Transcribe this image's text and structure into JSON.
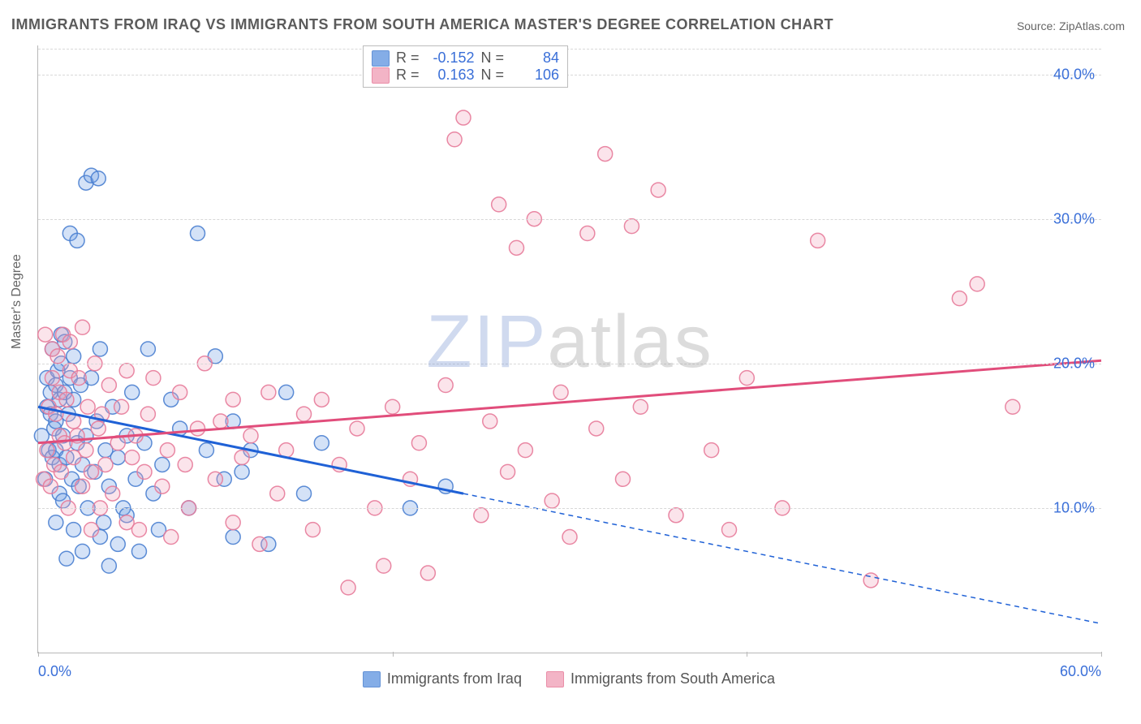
{
  "title": "IMMIGRANTS FROM IRAQ VS IMMIGRANTS FROM SOUTH AMERICA MASTER'S DEGREE CORRELATION CHART",
  "source_label": "Source: ZipAtlas.com",
  "ylabel": "Master's Degree",
  "watermark": {
    "left": "ZIP",
    "right": "atlas"
  },
  "chart": {
    "type": "scatter",
    "xlim": [
      0,
      60
    ],
    "ylim": [
      0,
      42
    ],
    "xtick_values": [
      0,
      20,
      40,
      60
    ],
    "xtick_labels": [
      "0.0%",
      "",
      "",
      "60.0%"
    ],
    "ytick_values": [
      10,
      20,
      30,
      40
    ],
    "ytick_labels": [
      "10.0%",
      "20.0%",
      "30.0%",
      "40.0%"
    ],
    "gridline_color": "#d8d8d8",
    "axis_color": "#b8b8b8",
    "tick_fontsize": 18,
    "tick_color": "#3a6fd8",
    "background_color": "#ffffff",
    "marker_radius": 9,
    "marker_stroke_width": 1.5,
    "marker_fill_opacity": 0.3,
    "trendline_width": 3
  },
  "series": [
    {
      "name": "Immigrants from Iraq",
      "color": "#6f9fe3",
      "stroke": "#4a7fd0",
      "trend_color": "#1f61d6",
      "r": -0.152,
      "n": 84,
      "trend": {
        "x1": 0,
        "y1": 17.0,
        "x2_solid": 24,
        "y2_solid": 11.0,
        "x2": 60,
        "y2": 2.0
      },
      "points": [
        [
          0.2,
          15
        ],
        [
          0.4,
          12
        ],
        [
          0.5,
          17
        ],
        [
          0.5,
          19
        ],
        [
          0.6,
          14
        ],
        [
          0.7,
          16.5
        ],
        [
          0.7,
          18
        ],
        [
          0.8,
          13.5
        ],
        [
          0.8,
          21
        ],
        [
          0.9,
          15.5
        ],
        [
          1.0,
          9
        ],
        [
          1.0,
          14
        ],
        [
          1.0,
          16
        ],
        [
          1.0,
          18.5
        ],
        [
          1.1,
          19.5
        ],
        [
          1.2,
          11
        ],
        [
          1.2,
          13
        ],
        [
          1.2,
          17.5
        ],
        [
          1.3,
          20
        ],
        [
          1.3,
          22
        ],
        [
          1.4,
          10.5
        ],
        [
          1.4,
          15
        ],
        [
          1.5,
          18
        ],
        [
          1.5,
          21.5
        ],
        [
          1.6,
          6.5
        ],
        [
          1.6,
          13.5
        ],
        [
          1.7,
          16.5
        ],
        [
          1.8,
          19
        ],
        [
          1.8,
          29
        ],
        [
          1.9,
          12
        ],
        [
          2.0,
          8.5
        ],
        [
          2.0,
          17.5
        ],
        [
          2.0,
          20.5
        ],
        [
          2.2,
          14.5
        ],
        [
          2.2,
          28.5
        ],
        [
          2.3,
          11.5
        ],
        [
          2.4,
          18.5
        ],
        [
          2.5,
          7
        ],
        [
          2.5,
          13
        ],
        [
          2.7,
          15
        ],
        [
          2.7,
          32.5
        ],
        [
          2.8,
          10
        ],
        [
          3.0,
          19
        ],
        [
          3.0,
          33
        ],
        [
          3.2,
          12.5
        ],
        [
          3.3,
          16
        ],
        [
          3.4,
          32.8
        ],
        [
          3.5,
          21
        ],
        [
          3.5,
          8
        ],
        [
          3.7,
          9
        ],
        [
          3.8,
          14
        ],
        [
          4.0,
          6
        ],
        [
          4.0,
          11.5
        ],
        [
          4.2,
          17
        ],
        [
          4.5,
          13.5
        ],
        [
          4.5,
          7.5
        ],
        [
          4.8,
          10
        ],
        [
          5.0,
          15
        ],
        [
          5.0,
          9.5
        ],
        [
          5.3,
          18
        ],
        [
          5.5,
          12
        ],
        [
          5.7,
          7
        ],
        [
          6.0,
          14.5
        ],
        [
          6.2,
          21
        ],
        [
          6.5,
          11
        ],
        [
          6.8,
          8.5
        ],
        [
          7.0,
          13
        ],
        [
          7.5,
          17.5
        ],
        [
          8.0,
          15.5
        ],
        [
          8.5,
          10
        ],
        [
          9.0,
          29
        ],
        [
          9.5,
          14
        ],
        [
          10.0,
          20.5
        ],
        [
          10.5,
          12
        ],
        [
          11.0,
          8
        ],
        [
          11.0,
          16
        ],
        [
          11.5,
          12.5
        ],
        [
          12.0,
          14
        ],
        [
          13.0,
          7.5
        ],
        [
          14.0,
          18
        ],
        [
          15.0,
          11
        ],
        [
          16.0,
          14.5
        ],
        [
          21.0,
          10
        ],
        [
          23.0,
          11.5
        ]
      ]
    },
    {
      "name": "Immigrants from South America",
      "color": "#f2a7bd",
      "stroke": "#e77b9a",
      "trend_color": "#e14d7b",
      "r": 0.163,
      "n": 106,
      "trend": {
        "x1": 0,
        "y1": 14.5,
        "x2_solid": 60,
        "y2_solid": 20.2,
        "x2": 60,
        "y2": 20.2
      },
      "points": [
        [
          0.3,
          12
        ],
        [
          0.4,
          22
        ],
        [
          0.5,
          14
        ],
        [
          0.6,
          17
        ],
        [
          0.7,
          11.5
        ],
        [
          0.8,
          19
        ],
        [
          0.8,
          21
        ],
        [
          0.9,
          13
        ],
        [
          1.0,
          16.5
        ],
        [
          1.1,
          20.5
        ],
        [
          1.2,
          15
        ],
        [
          1.2,
          18
        ],
        [
          1.3,
          12.5
        ],
        [
          1.4,
          22
        ],
        [
          1.5,
          14.5
        ],
        [
          1.6,
          17.5
        ],
        [
          1.7,
          10
        ],
        [
          1.8,
          19.5
        ],
        [
          1.8,
          21.5
        ],
        [
          2.0,
          13.5
        ],
        [
          2.0,
          16
        ],
        [
          2.2,
          15
        ],
        [
          2.3,
          19
        ],
        [
          2.5,
          11.5
        ],
        [
          2.5,
          22.5
        ],
        [
          2.7,
          14
        ],
        [
          2.8,
          17
        ],
        [
          3.0,
          8.5
        ],
        [
          3.0,
          12.5
        ],
        [
          3.2,
          20
        ],
        [
          3.4,
          15.5
        ],
        [
          3.5,
          10
        ],
        [
          3.6,
          16.5
        ],
        [
          3.8,
          13
        ],
        [
          4.0,
          18.5
        ],
        [
          4.2,
          11
        ],
        [
          4.5,
          14.5
        ],
        [
          4.7,
          17
        ],
        [
          5.0,
          9
        ],
        [
          5.0,
          19.5
        ],
        [
          5.3,
          13.5
        ],
        [
          5.5,
          15
        ],
        [
          5.7,
          8.5
        ],
        [
          6.0,
          12.5
        ],
        [
          6.2,
          16.5
        ],
        [
          6.5,
          19
        ],
        [
          7.0,
          11.5
        ],
        [
          7.3,
          14
        ],
        [
          7.5,
          8
        ],
        [
          8.0,
          18
        ],
        [
          8.3,
          13
        ],
        [
          8.5,
          10
        ],
        [
          9.0,
          15.5
        ],
        [
          9.4,
          20
        ],
        [
          10.0,
          12
        ],
        [
          10.3,
          16
        ],
        [
          11.0,
          9
        ],
        [
          11.0,
          17.5
        ],
        [
          11.5,
          13.5
        ],
        [
          12.0,
          15
        ],
        [
          12.5,
          7.5
        ],
        [
          13.0,
          18
        ],
        [
          13.5,
          11
        ],
        [
          14.0,
          14
        ],
        [
          15.0,
          16.5
        ],
        [
          15.5,
          8.5
        ],
        [
          16.0,
          17.5
        ],
        [
          17.0,
          13
        ],
        [
          17.5,
          4.5
        ],
        [
          18.0,
          15.5
        ],
        [
          19.0,
          10
        ],
        [
          19.5,
          6
        ],
        [
          20.0,
          17
        ],
        [
          21.0,
          12
        ],
        [
          21.5,
          14.5
        ],
        [
          22.0,
          5.5
        ],
        [
          23.0,
          18.5
        ],
        [
          23.5,
          35.5
        ],
        [
          24.0,
          37
        ],
        [
          25.0,
          9.5
        ],
        [
          25.5,
          16
        ],
        [
          26.0,
          31
        ],
        [
          26.5,
          12.5
        ],
        [
          27.0,
          28
        ],
        [
          27.5,
          14
        ],
        [
          28.0,
          30
        ],
        [
          29.0,
          10.5
        ],
        [
          29.5,
          18
        ],
        [
          30.0,
          8
        ],
        [
          31.0,
          29
        ],
        [
          31.5,
          15.5
        ],
        [
          32.0,
          34.5
        ],
        [
          33.0,
          12
        ],
        [
          33.5,
          29.5
        ],
        [
          34.0,
          17
        ],
        [
          35.0,
          32
        ],
        [
          36.0,
          9.5
        ],
        [
          38.0,
          14
        ],
        [
          39.0,
          8.5
        ],
        [
          40.0,
          19
        ],
        [
          42.0,
          10
        ],
        [
          44.0,
          28.5
        ],
        [
          47.0,
          5
        ],
        [
          52.0,
          24.5
        ],
        [
          53.0,
          25.5
        ],
        [
          55.0,
          17
        ]
      ]
    }
  ],
  "legend_top": {
    "r_label": "R =",
    "n_label": "N ="
  },
  "legend_bottom": [
    {
      "swatch": 0,
      "label": "Immigrants from Iraq"
    },
    {
      "swatch": 1,
      "label": "Immigrants from South America"
    }
  ]
}
